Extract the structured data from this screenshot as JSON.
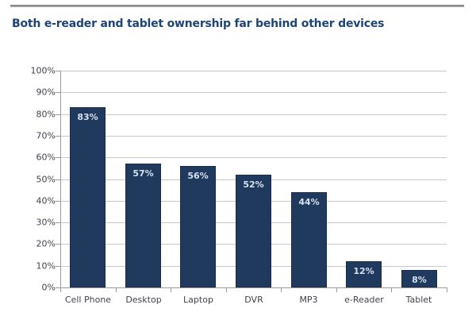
{
  "chart_data": {
    "type": "bar",
    "title": "Both e-reader and tablet ownership far behind other devices",
    "categories": [
      "Cell Phone",
      "Desktop",
      "Laptop",
      "DVR",
      "MP3",
      "e-Reader",
      "Tablet"
    ],
    "values": [
      83,
      57,
      56,
      52,
      44,
      12,
      8
    ],
    "value_labels": [
      "83%",
      "57%",
      "56%",
      "52%",
      "44%",
      "12%",
      "8%"
    ],
    "xlabel": "",
    "ylabel": "",
    "ylim": [
      0,
      100
    ],
    "ytick_step": 10,
    "ytick_labels": [
      "0%",
      "10%",
      "20%",
      "30%",
      "40%",
      "50%",
      "60%",
      "70%",
      "80%",
      "90%",
      "100%"
    ],
    "grid": "horizontal",
    "legend": "none",
    "colors": {
      "bar": "#203A5E",
      "bar_border": "#1A2E4C",
      "bar_label": "#D6E0EE",
      "title": "#1E4577",
      "axis_text": "#42424E",
      "gridline": "#C9C9C9",
      "axis_line": "#9B9B9B",
      "divider": "#7F7F7F",
      "background": "#FFFFFF"
    }
  }
}
